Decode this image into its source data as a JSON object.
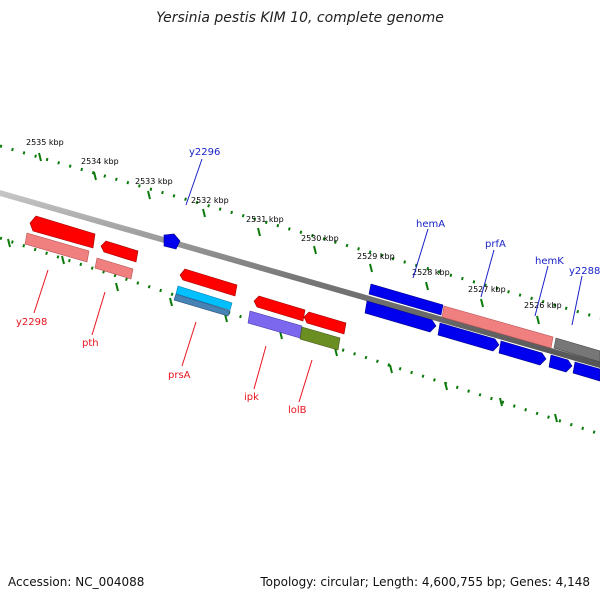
{
  "title": "Yersinia pestis KIM 10, complete genome",
  "footer": {
    "accession": "Accession: NC_004088",
    "summary": "Topology: circular; Length: 4,600,755 bp; Genes: 4,148"
  },
  "scale_labels": [
    "2535 kbp",
    "2534 kbp",
    "2533 kbp",
    "2532 kbp",
    "2531 kbp",
    "2530 kbp",
    "2529 kbp",
    "2528 kbp",
    "2527 kbp",
    "2526 kbp"
  ],
  "gene_labels": {
    "y2296": "y2296",
    "hemA": "hemA",
    "prfA": "prfA",
    "hemK": "hemK",
    "y2288": "y2288",
    "y2298": "y2298",
    "pth": "pth",
    "prsA": "prsA",
    "ipk": "ipk",
    "lolB": "lolB"
  },
  "colors": {
    "gene_red": "#ff0000",
    "gene_pink": "#f08080",
    "gene_blue": "#0000ee",
    "gene_cyan": "#00bfff",
    "gene_steel": "#4682b4",
    "gene_purple": "#7b68ee",
    "gene_olive": "#6b8e23",
    "gene_gray": "#777777",
    "tick_green": "#006400",
    "backbone": "#777777"
  }
}
